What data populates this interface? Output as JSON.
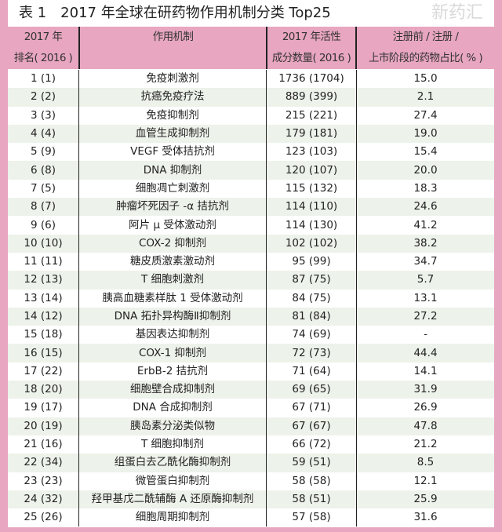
{
  "title": "表 1　2017 年全球在研药物作用机制分类 Top25",
  "headers": [
    {
      "line1": "2017 年",
      "line2": "排名( 2016 )"
    },
    {
      "line1": "作用机制",
      "line2": ""
    },
    {
      "line1": "2017 年活性",
      "line2": "成分数量( 2016 )"
    },
    {
      "line1": "注册前 / 注册 /",
      "line2": "上市阶段的药物占比( % )"
    }
  ],
  "rows": [
    [
      "1 (1)",
      "免疫刺激剂",
      "1736 (1704)",
      "15.0"
    ],
    [
      "2 (2)",
      "抗癌免疫疗法",
      "889 (399)",
      "2.1"
    ],
    [
      "3 (3)",
      "免疫抑制剂",
      "215 (221)",
      "27.4"
    ],
    [
      "4 (4)",
      "血管生成抑制剂",
      "179 (181)",
      "19.0"
    ],
    [
      "5 (9)",
      "VEGF 受体拮抗剂",
      "123 (103)",
      "15.4"
    ],
    [
      "6 (8)",
      "DNA 抑制剂",
      "120 (107)",
      "20.0"
    ],
    [
      "7 (5)",
      "细胞凋亡刺激剂",
      "115 (132)",
      "18.3"
    ],
    [
      "8 (7)",
      "肿瘤坏死因子 -α 拮抗剂",
      "114 (110)",
      "24.6"
    ],
    [
      "9 (6)",
      "阿片 μ 受体激动剂",
      "114 (130)",
      "41.2"
    ],
    [
      "10 (10)",
      "COX-2 抑制剂",
      "102 (102)",
      "38.2"
    ],
    [
      "11 (11)",
      "糖皮质激素激动剂",
      "95 (99)",
      "34.7"
    ],
    [
      "12 (13)",
      "T 细胞刺激剂",
      "87 (75)",
      "5.7"
    ],
    [
      "13 (14)",
      "胰高血糖素样肽 1 受体激动剂",
      "84 (75)",
      "13.1"
    ],
    [
      "14 (12)",
      "DNA 拓扑异构酶Ⅱ抑制剂",
      "81 (84)",
      "27.2"
    ],
    [
      "15 (18)",
      "基因表达抑制剂",
      "74 (69)",
      "-"
    ],
    [
      "16 (15)",
      "COX-1 抑制剂",
      "72 (73)",
      "44.4"
    ],
    [
      "17 (22)",
      "ErbB-2 拮抗剂",
      "71 (64)",
      "14.1"
    ],
    [
      "18 (20)",
      "细胞壁合成抑制剂",
      "69 (65)",
      "31.9"
    ],
    [
      "19 (17)",
      "DNA 合成抑制剂",
      "67 (71)",
      "26.9"
    ],
    [
      "20 (19)",
      "胰岛素分泌类似物",
      "67 (67)",
      "47.8"
    ],
    [
      "21 (16)",
      "T 细胞抑制剂",
      "66 (72)",
      "21.2"
    ],
    [
      "22 (34)",
      "组蛋白去乙酰化酶抑制剂",
      "59 (51)",
      "8.5"
    ],
    [
      "23 (23)",
      "微管蛋白抑制剂",
      "58 (58)",
      "12.1"
    ],
    [
      "24 (32)",
      "羟甲基戊二酰辅酶 A 还原酶抑制剂",
      "58 (51)",
      "25.9"
    ],
    [
      "25 (26)",
      "细胞周期抑制剂",
      "57 (58)",
      "31.6"
    ]
  ],
  "watermark": "新药汇",
  "colors": {
    "border": "#e8a6c0",
    "stripe": "#edf2ea"
  }
}
